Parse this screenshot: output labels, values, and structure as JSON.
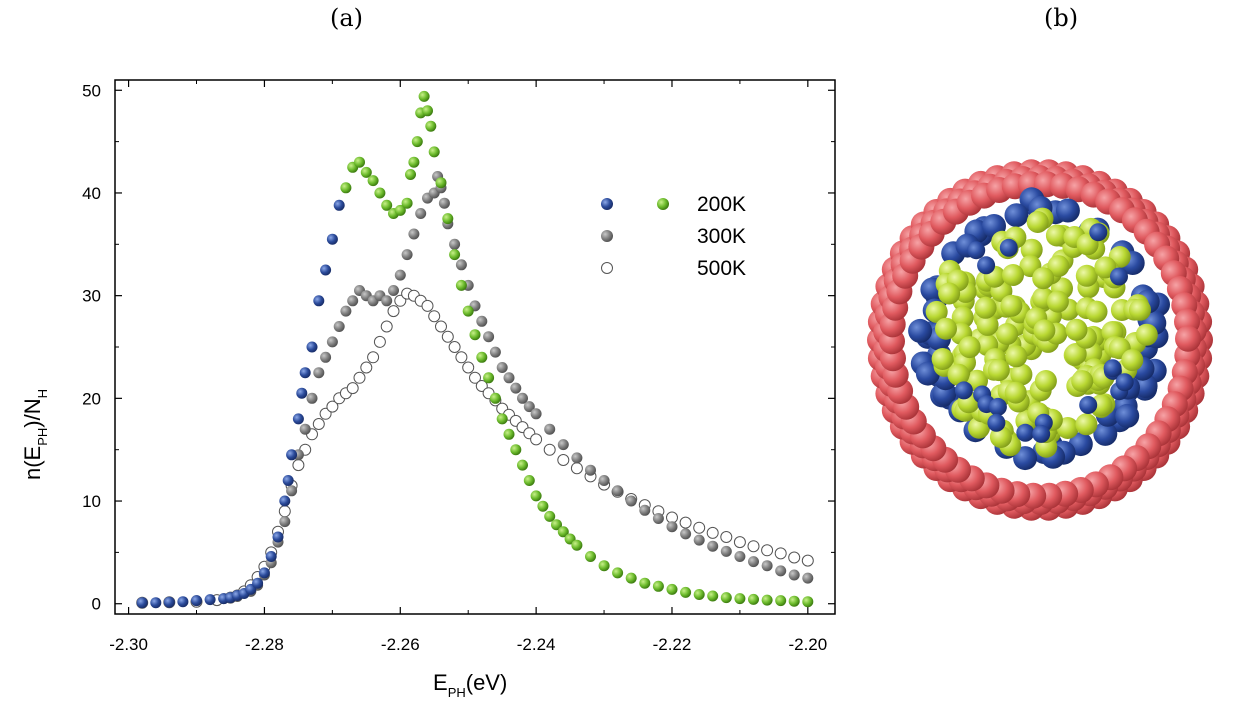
{
  "panels": {
    "a_label": "(a)",
    "b_label": "(b)"
  },
  "chart_data": {
    "type": "scatter",
    "title": "",
    "xlabel_main": "E",
    "xlabel_sub": "PH",
    "xlabel_unit": "(eV)",
    "ylabel_prefix": "n(E",
    "ylabel_sub1": "PH",
    "ylabel_mid": ")/N",
    "ylabel_sub2": "H",
    "xlim": [
      -2.3,
      -2.2
    ],
    "ylim": [
      -1,
      51
    ],
    "xticks": [
      -2.3,
      -2.28,
      -2.26,
      -2.24,
      -2.22,
      -2.2
    ],
    "xtick_labels": [
      "-2.30",
      "-2.28",
      "-2.26",
      "-2.24",
      "-2.22",
      "-2.20"
    ],
    "yticks": [
      0,
      10,
      20,
      30,
      40,
      50
    ],
    "ytick_labels": [
      "0",
      "10",
      "20",
      "30",
      "40",
      "50"
    ],
    "legend_position": "top-right",
    "series": [
      {
        "name": "200K",
        "marker": "filled-circle",
        "colors": {
          "low_x": "#2b4b9b",
          "high_x": "#6cbb2c"
        },
        "color_split_x": -2.268,
        "points": [
          [
            -2.298,
            0.1
          ],
          [
            -2.296,
            0.1
          ],
          [
            -2.294,
            0.15
          ],
          [
            -2.292,
            0.2
          ],
          [
            -2.29,
            0.3
          ],
          [
            -2.288,
            0.4
          ],
          [
            -2.286,
            0.5
          ],
          [
            -2.285,
            0.6
          ],
          [
            -2.284,
            0.8
          ],
          [
            -2.283,
            1.0
          ],
          [
            -2.282,
            1.4
          ],
          [
            -2.281,
            2.0
          ],
          [
            -2.28,
            3.0
          ],
          [
            -2.279,
            4.6
          ],
          [
            -2.278,
            6.5
          ],
          [
            -2.277,
            10.0
          ],
          [
            -2.2765,
            12.0
          ],
          [
            -2.276,
            14.5
          ],
          [
            -2.275,
            18.0
          ],
          [
            -2.2745,
            20.5
          ],
          [
            -2.274,
            22.5
          ],
          [
            -2.273,
            25.0
          ],
          [
            -2.272,
            29.5
          ],
          [
            -2.271,
            32.5
          ],
          [
            -2.27,
            35.5
          ],
          [
            -2.269,
            38.8
          ],
          [
            -2.268,
            40.5
          ],
          [
            -2.267,
            42.5
          ],
          [
            -2.266,
            43.0
          ],
          [
            -2.265,
            42.0
          ],
          [
            -2.264,
            41.2
          ],
          [
            -2.263,
            40.0
          ],
          [
            -2.262,
            38.8
          ],
          [
            -2.261,
            38.0
          ],
          [
            -2.26,
            38.3
          ],
          [
            -2.259,
            39.0
          ],
          [
            -2.2585,
            41.8
          ],
          [
            -2.258,
            43.0
          ],
          [
            -2.2575,
            45.0
          ],
          [
            -2.257,
            47.8
          ],
          [
            -2.2565,
            49.4
          ],
          [
            -2.256,
            48.0
          ],
          [
            -2.2555,
            46.5
          ],
          [
            -2.255,
            44.0
          ],
          [
            -2.254,
            41.0
          ],
          [
            -2.253,
            37.5
          ],
          [
            -2.252,
            34.0
          ],
          [
            -2.251,
            31.0
          ],
          [
            -2.25,
            28.5
          ],
          [
            -2.249,
            26.2
          ],
          [
            -2.248,
            24.0
          ],
          [
            -2.247,
            22.0
          ],
          [
            -2.246,
            20.0
          ],
          [
            -2.245,
            18.0
          ],
          [
            -2.244,
            16.5
          ],
          [
            -2.243,
            15.0
          ],
          [
            -2.242,
            13.5
          ],
          [
            -2.241,
            12.0
          ],
          [
            -2.24,
            10.5
          ],
          [
            -2.239,
            9.5
          ],
          [
            -2.238,
            8.5
          ],
          [
            -2.237,
            7.7
          ],
          [
            -2.236,
            7.0
          ],
          [
            -2.235,
            6.3
          ],
          [
            -2.234,
            5.7
          ],
          [
            -2.232,
            4.6
          ],
          [
            -2.23,
            3.7
          ],
          [
            -2.228,
            3.0
          ],
          [
            -2.226,
            2.5
          ],
          [
            -2.224,
            2.0
          ],
          [
            -2.222,
            1.7
          ],
          [
            -2.22,
            1.4
          ],
          [
            -2.218,
            1.1
          ],
          [
            -2.216,
            0.9
          ],
          [
            -2.214,
            0.75
          ],
          [
            -2.212,
            0.6
          ],
          [
            -2.21,
            0.5
          ],
          [
            -2.208,
            0.42
          ],
          [
            -2.206,
            0.35
          ],
          [
            -2.204,
            0.3
          ],
          [
            -2.202,
            0.25
          ],
          [
            -2.2,
            0.2
          ]
        ]
      },
      {
        "name": "300K",
        "marker": "filled-circle",
        "colors": {
          "all": "#7f7f7f"
        },
        "points": [
          [
            -2.298,
            0.1
          ],
          [
            -2.294,
            0.15
          ],
          [
            -2.29,
            0.3
          ],
          [
            -2.286,
            0.5
          ],
          [
            -2.284,
            0.7
          ],
          [
            -2.282,
            1.2
          ],
          [
            -2.281,
            1.8
          ],
          [
            -2.28,
            2.8
          ],
          [
            -2.279,
            4.0
          ],
          [
            -2.278,
            6.0
          ],
          [
            -2.277,
            8.0
          ],
          [
            -2.276,
            11.0
          ],
          [
            -2.275,
            14.5
          ],
          [
            -2.274,
            17.0
          ],
          [
            -2.273,
            20.0
          ],
          [
            -2.272,
            22.5
          ],
          [
            -2.271,
            24.0
          ],
          [
            -2.27,
            25.5
          ],
          [
            -2.269,
            27.0
          ],
          [
            -2.268,
            28.5
          ],
          [
            -2.267,
            29.5
          ],
          [
            -2.266,
            30.5
          ],
          [
            -2.265,
            30.0
          ],
          [
            -2.264,
            29.5
          ],
          [
            -2.263,
            30.0
          ],
          [
            -2.262,
            29.5
          ],
          [
            -2.261,
            30.5
          ],
          [
            -2.26,
            32.0
          ],
          [
            -2.259,
            34.0
          ],
          [
            -2.258,
            36.0
          ],
          [
            -2.257,
            38.0
          ],
          [
            -2.256,
            39.5
          ],
          [
            -2.255,
            40.0
          ],
          [
            -2.2545,
            41.6
          ],
          [
            -2.254,
            40.5
          ],
          [
            -2.2535,
            39.0
          ],
          [
            -2.253,
            37.0
          ],
          [
            -2.252,
            35.0
          ],
          [
            -2.251,
            33.0
          ],
          [
            -2.25,
            31.0
          ],
          [
            -2.249,
            29.0
          ],
          [
            -2.248,
            27.5
          ],
          [
            -2.247,
            26.0
          ],
          [
            -2.246,
            24.5
          ],
          [
            -2.245,
            23.0
          ],
          [
            -2.244,
            22.0
          ],
          [
            -2.243,
            21.0
          ],
          [
            -2.242,
            20.0
          ],
          [
            -2.241,
            19.2
          ],
          [
            -2.24,
            18.5
          ],
          [
            -2.238,
            17.0
          ],
          [
            -2.236,
            15.5
          ],
          [
            -2.234,
            14.2
          ],
          [
            -2.232,
            13.0
          ],
          [
            -2.23,
            12.0
          ],
          [
            -2.228,
            11.0
          ],
          [
            -2.226,
            10.0
          ],
          [
            -2.224,
            9.1
          ],
          [
            -2.222,
            8.3
          ],
          [
            -2.22,
            7.5
          ],
          [
            -2.218,
            6.8
          ],
          [
            -2.216,
            6.2
          ],
          [
            -2.214,
            5.6
          ],
          [
            -2.212,
            5.1
          ],
          [
            -2.21,
            4.6
          ],
          [
            -2.208,
            4.1
          ],
          [
            -2.206,
            3.7
          ],
          [
            -2.204,
            3.2
          ],
          [
            -2.202,
            2.8
          ],
          [
            -2.2,
            2.5
          ]
        ]
      },
      {
        "name": "500K",
        "marker": "open-circle",
        "colors": {
          "all": "#7f7f7f"
        },
        "points": [
          [
            -2.298,
            0.1
          ],
          [
            -2.294,
            0.15
          ],
          [
            -2.29,
            0.2
          ],
          [
            -2.287,
            0.35
          ],
          [
            -2.285,
            0.6
          ],
          [
            -2.284,
            0.8
          ],
          [
            -2.283,
            1.2
          ],
          [
            -2.282,
            1.8
          ],
          [
            -2.281,
            2.6
          ],
          [
            -2.28,
            3.6
          ],
          [
            -2.279,
            5.0
          ],
          [
            -2.278,
            7.0
          ],
          [
            -2.277,
            9.0
          ],
          [
            -2.276,
            11.5
          ],
          [
            -2.275,
            13.5
          ],
          [
            -2.274,
            15.0
          ],
          [
            -2.273,
            16.5
          ],
          [
            -2.272,
            17.5
          ],
          [
            -2.271,
            18.5
          ],
          [
            -2.27,
            19.2
          ],
          [
            -2.269,
            20.0
          ],
          [
            -2.268,
            20.5
          ],
          [
            -2.267,
            21.0
          ],
          [
            -2.266,
            22.0
          ],
          [
            -2.265,
            23.0
          ],
          [
            -2.264,
            24.0
          ],
          [
            -2.263,
            25.5
          ],
          [
            -2.262,
            27.0
          ],
          [
            -2.261,
            28.5
          ],
          [
            -2.26,
            29.5
          ],
          [
            -2.259,
            30.2
          ],
          [
            -2.258,
            30.0
          ],
          [
            -2.257,
            29.5
          ],
          [
            -2.256,
            29.0
          ],
          [
            -2.255,
            28.0
          ],
          [
            -2.254,
            27.0
          ],
          [
            -2.253,
            26.0
          ],
          [
            -2.252,
            25.0
          ],
          [
            -2.251,
            24.0
          ],
          [
            -2.25,
            23.0
          ],
          [
            -2.249,
            22.0
          ],
          [
            -2.248,
            21.2
          ],
          [
            -2.247,
            20.5
          ],
          [
            -2.246,
            19.8
          ],
          [
            -2.245,
            19.0
          ],
          [
            -2.244,
            18.4
          ],
          [
            -2.243,
            17.8
          ],
          [
            -2.242,
            17.2
          ],
          [
            -2.241,
            16.6
          ],
          [
            -2.24,
            16.0
          ],
          [
            -2.238,
            15.0
          ],
          [
            -2.236,
            14.0
          ],
          [
            -2.234,
            13.2
          ],
          [
            -2.232,
            12.4
          ],
          [
            -2.23,
            11.6
          ],
          [
            -2.228,
            10.9
          ],
          [
            -2.226,
            10.2
          ],
          [
            -2.224,
            9.6
          ],
          [
            -2.222,
            9.0
          ],
          [
            -2.22,
            8.4
          ],
          [
            -2.218,
            7.9
          ],
          [
            -2.216,
            7.4
          ],
          [
            -2.214,
            6.9
          ],
          [
            -2.212,
            6.5
          ],
          [
            -2.21,
            6.0
          ],
          [
            -2.208,
            5.6
          ],
          [
            -2.206,
            5.2
          ],
          [
            -2.204,
            4.9
          ],
          [
            -2.202,
            4.5
          ],
          [
            -2.2,
            4.2
          ]
        ]
      }
    ]
  },
  "molecule": {
    "shell_color": "#e05a5f",
    "inner_blue": "#2a4aa0",
    "inner_green": "#b9d832"
  }
}
